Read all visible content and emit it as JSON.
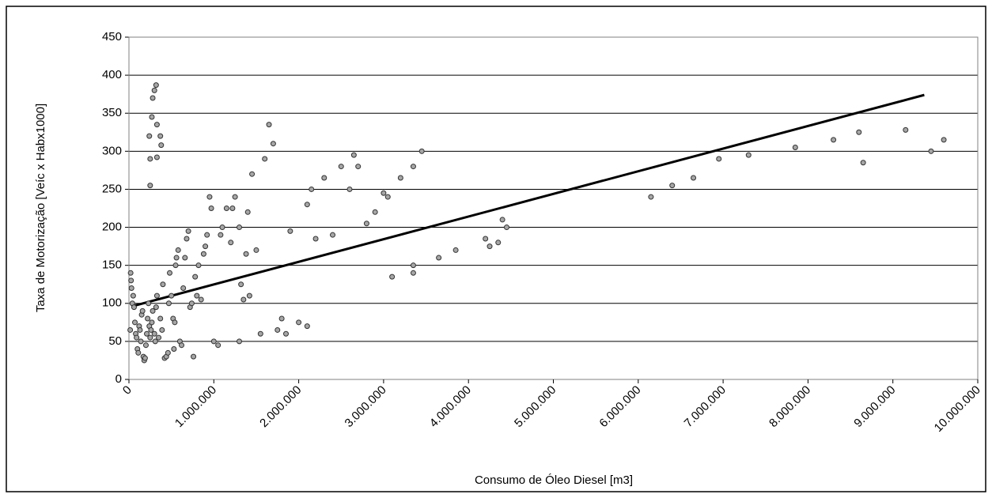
{
  "chart_data": {
    "type": "scatter",
    "xlabel": "Consumo de Óleo Diesel [m3]",
    "ylabel": "Taxa de Motorização [Veíc x Habx1000]",
    "x": [
      20000,
      25000,
      30000,
      15000,
      40000,
      50000,
      60000,
      70000,
      80000,
      90000,
      100000,
      110000,
      120000,
      130000,
      140000,
      150000,
      160000,
      170000,
      180000,
      190000,
      200000,
      210000,
      220000,
      230000,
      240000,
      250000,
      260000,
      270000,
      280000,
      300000,
      310000,
      320000,
      330000,
      350000,
      370000,
      390000,
      400000,
      420000,
      440000,
      460000,
      470000,
      480000,
      500000,
      520000,
      530000,
      540000,
      550000,
      560000,
      580000,
      600000,
      620000,
      640000,
      660000,
      680000,
      700000,
      720000,
      740000,
      760000,
      780000,
      800000,
      820000,
      850000,
      880000,
      900000,
      920000,
      950000,
      970000,
      1000000,
      1050000,
      1080000,
      1100000,
      1150000,
      1200000,
      1220000,
      1250000,
      1300000,
      1300000,
      1320000,
      1350000,
      1380000,
      1400000,
      1420000,
      1450000,
      1500000,
      1550000,
      1600000,
      1650000,
      1700000,
      1750000,
      1800000,
      1850000,
      1900000,
      2000000,
      2100000,
      2100000,
      2150000,
      2200000,
      2300000,
      2400000,
      2500000,
      2600000,
      2650000,
      2700000,
      2800000,
      2900000,
      3000000,
      3050000,
      3100000,
      3200000,
      3350000,
      3350000,
      3350000,
      3450000,
      3650000,
      3850000,
      4200000,
      4250000,
      4350000,
      4400000,
      4450000,
      6150000,
      6400000,
      6650000,
      6950000,
      7300000,
      7850000,
      8300000,
      8600000,
      8650000,
      9150000,
      9450000,
      9600000,
      250000,
      240000,
      250000,
      280000,
      270000,
      300000,
      320000,
      330000,
      330000,
      370000,
      380000
    ],
    "values": [
      140,
      130,
      120,
      65,
      100,
      110,
      95,
      75,
      60,
      55,
      40,
      35,
      70,
      65,
      50,
      85,
      90,
      30,
      25,
      28,
      45,
      60,
      80,
      100,
      70,
      55,
      65,
      75,
      90,
      60,
      50,
      95,
      110,
      55,
      80,
      65,
      125,
      28,
      30,
      35,
      100,
      140,
      110,
      80,
      40,
      75,
      150,
      160,
      170,
      50,
      45,
      120,
      160,
      185,
      195,
      95,
      100,
      30,
      135,
      110,
      150,
      105,
      165,
      175,
      190,
      240,
      225,
      50,
      45,
      190,
      200,
      225,
      180,
      225,
      240,
      50,
      200,
      125,
      105,
      165,
      220,
      110,
      270,
      170,
      60,
      290,
      335,
      310,
      65,
      80,
      60,
      195,
      75,
      230,
      70,
      250,
      185,
      265,
      190,
      280,
      250,
      295,
      280,
      205,
      220,
      245,
      240,
      135,
      265,
      280,
      140,
      150,
      300,
      160,
      170,
      185,
      175,
      180,
      210,
      200,
      240,
      255,
      265,
      290,
      295,
      305,
      315,
      325,
      285,
      328,
      300,
      315,
      255,
      320,
      290,
      370,
      345,
      380,
      387,
      335,
      292,
      320,
      308
    ],
    "trendline": {
      "x": [
        65000,
        9370000
      ],
      "values": [
        97,
        374
      ],
      "color": "#000000"
    },
    "color": "#a6a6a6",
    "xlim": [
      0,
      10000000
    ],
    "xticks": [
      0,
      {
        "value": 1000000,
        "label": "1.000.000"
      },
      {
        "value": 2000000,
        "label": "2.000.000"
      },
      {
        "value": 3000000,
        "label": "3.000.000"
      },
      {
        "value": 4000000,
        "label": "4.000.000"
      },
      {
        "value": 5000000,
        "label": "5.000.000"
      },
      {
        "value": 6000000,
        "label": "6.000.000"
      },
      {
        "value": 7000000,
        "label": "7.000.000"
      },
      {
        "value": 8000000,
        "label": "8.000.000"
      },
      {
        "value": 9000000,
        "label": "9.000.000"
      },
      {
        "value": 10000000,
        "label": "10.000.000"
      }
    ],
    "ylim": [
      0,
      450
    ],
    "yticks": [
      0,
      50,
      100,
      150,
      200,
      250,
      300,
      350,
      400,
      450
    ],
    "grid": true
  }
}
